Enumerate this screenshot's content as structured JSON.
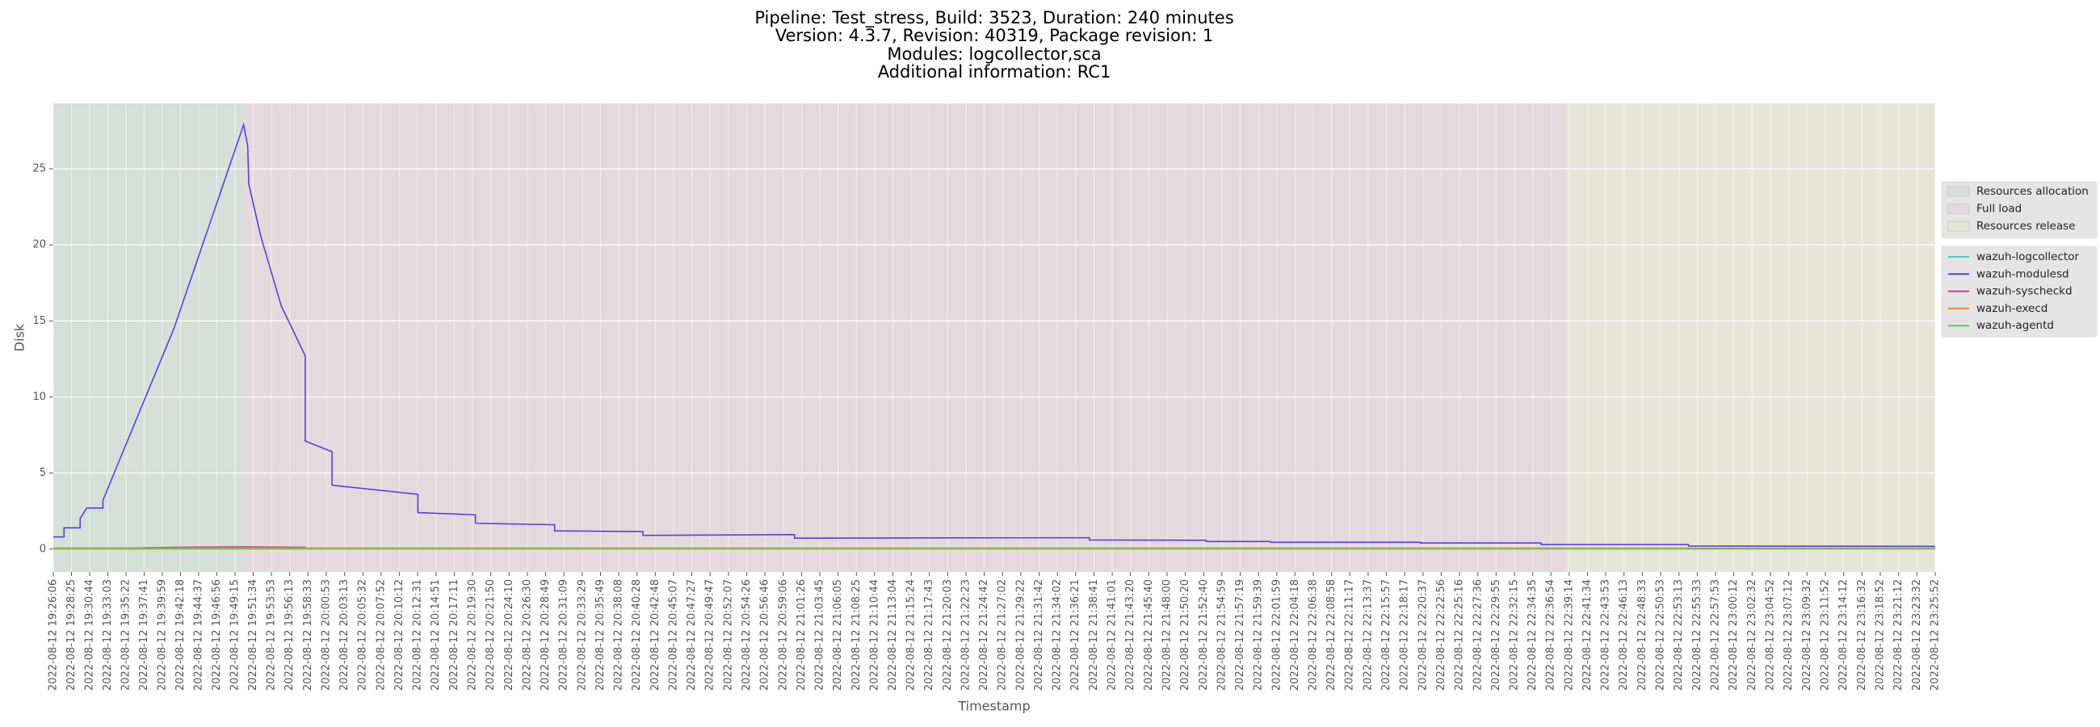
{
  "chart_data": {
    "type": "line",
    "title": [
      "Pipeline: Test_stress, Build: 3523, Duration: 240 minutes",
      "Version: 4.3.7, Revision: 40319, Package revision: 1",
      "Modules: logcollector,sca",
      "Additional information: RC1"
    ],
    "xlabel": "Timestamp",
    "ylabel": "Disk",
    "ylim": [
      -1.5,
      29.3
    ],
    "yticks": [
      0,
      5,
      10,
      15,
      20,
      25
    ],
    "grid": true,
    "xlim": [
      "2022-08-12 19:26:06",
      "2022-08-12 23:25:52"
    ],
    "xticks": [
      "2022-08-12 19:26:06",
      "2022-08-12 19:28:25",
      "2022-08-12 19:30:44",
      "2022-08-12 19:33:03",
      "2022-08-12 19:35:22",
      "2022-08-12 19:37:41",
      "2022-08-12 19:39:59",
      "2022-08-12 19:42:18",
      "2022-08-12 19:44:37",
      "2022-08-12 19:46:56",
      "2022-08-12 19:49:15",
      "2022-08-12 19:51:34",
      "2022-08-12 19:53:53",
      "2022-08-12 19:56:13",
      "2022-08-12 19:58:33",
      "2022-08-12 20:00:53",
      "2022-08-12 20:03:13",
      "2022-08-12 20:05:32",
      "2022-08-12 20:07:52",
      "2022-08-12 20:10:12",
      "2022-08-12 20:12:31",
      "2022-08-12 20:14:51",
      "2022-08-12 20:17:11",
      "2022-08-12 20:19:30",
      "2022-08-12 20:21:50",
      "2022-08-12 20:24:10",
      "2022-08-12 20:26:30",
      "2022-08-12 20:28:49",
      "2022-08-12 20:31:09",
      "2022-08-12 20:33:29",
      "2022-08-12 20:35:49",
      "2022-08-12 20:38:08",
      "2022-08-12 20:40:28",
      "2022-08-12 20:42:48",
      "2022-08-12 20:45:07",
      "2022-08-12 20:47:27",
      "2022-08-12 20:49:47",
      "2022-08-12 20:52:07",
      "2022-08-12 20:54:26",
      "2022-08-12 20:56:46",
      "2022-08-12 20:59:06",
      "2022-08-12 21:01:26",
      "2022-08-12 21:03:45",
      "2022-08-12 21:06:05",
      "2022-08-12 21:08:25",
      "2022-08-12 21:10:44",
      "2022-08-12 21:13:04",
      "2022-08-12 21:15:24",
      "2022-08-12 21:17:43",
      "2022-08-12 21:20:03",
      "2022-08-12 21:22:23",
      "2022-08-12 21:24:42",
      "2022-08-12 21:27:02",
      "2022-08-12 21:29:22",
      "2022-08-12 21:31:42",
      "2022-08-12 21:34:02",
      "2022-08-12 21:36:21",
      "2022-08-12 21:38:41",
      "2022-08-12 21:41:01",
      "2022-08-12 21:43:20",
      "2022-08-12 21:45:40",
      "2022-08-12 21:48:00",
      "2022-08-12 21:50:20",
      "2022-08-12 21:52:40",
      "2022-08-12 21:54:59",
      "2022-08-12 21:57:19",
      "2022-08-12 21:59:39",
      "2022-08-12 22:01:59",
      "2022-08-12 22:04:18",
      "2022-08-12 22:06:38",
      "2022-08-12 22:08:58",
      "2022-08-12 22:11:17",
      "2022-08-12 22:13:37",
      "2022-08-12 22:15:57",
      "2022-08-12 22:18:17",
      "2022-08-12 22:20:37",
      "2022-08-12 22:22:56",
      "2022-08-12 22:25:16",
      "2022-08-12 22:27:36",
      "2022-08-12 22:29:55",
      "2022-08-12 22:32:15",
      "2022-08-12 22:34:35",
      "2022-08-12 22:36:54",
      "2022-08-12 22:39:14",
      "2022-08-12 22:41:34",
      "2022-08-12 22:43:53",
      "2022-08-12 22:46:13",
      "2022-08-12 22:48:33",
      "2022-08-12 22:50:53",
      "2022-08-12 22:53:13",
      "2022-08-12 22:55:33",
      "2022-08-12 22:57:53",
      "2022-08-12 23:00:12",
      "2022-08-12 23:02:32",
      "2022-08-12 23:04:52",
      "2022-08-12 23:07:12",
      "2022-08-12 23:09:32",
      "2022-08-12 23:11:52",
      "2022-08-12 23:14:12",
      "2022-08-12 23:16:32",
      "2022-08-12 23:18:52",
      "2022-08-12 23:21:12",
      "2022-08-12 23:23:32",
      "2022-08-12 23:25:52"
    ],
    "spans": [
      {
        "name": "Resources allocation",
        "start": "2022-08-12 19:26:06",
        "end": "2022-08-12 19:50:30",
        "color": "#d6e0d9"
      },
      {
        "name": "Full load",
        "start": "2022-08-12 19:50:30",
        "end": "2022-08-12 22:38:43",
        "color": "#e6d9dd"
      },
      {
        "name": "Resources release",
        "start": "2022-08-12 22:38:43",
        "end": "2022-08-12 23:25:52",
        "color": "#e5e6d8"
      }
    ],
    "x": [
      "2022-08-12 19:26:06",
      "2022-08-12 19:27:28",
      "2022-08-12 19:27:28",
      "2022-08-12 19:29:31",
      "2022-08-12 19:29:31",
      "2022-08-12 19:30:22",
      "2022-08-12 19:32:25",
      "2022-08-12 19:32:25",
      "2022-08-12 19:41:28",
      "2022-08-12 19:50:21",
      "2022-08-12 19:50:52",
      "2022-08-12 19:51:00",
      "2022-08-12 19:52:34",
      "2022-08-12 19:55:08",
      "2022-08-12 19:58:12",
      "2022-08-12 19:58:12",
      "2022-08-12 20:01:37",
      "2022-08-12 20:01:37",
      "2022-08-12 20:12:33",
      "2022-08-12 20:12:33",
      "2022-08-12 20:19:53",
      "2022-08-12 20:19:53",
      "2022-08-12 20:29:58",
      "2022-08-12 20:29:58",
      "2022-08-12 20:41:14",
      "2022-08-12 20:41:14",
      "2022-08-12 21:00:32",
      "2022-08-12 21:00:32",
      "2022-08-12 21:38:06",
      "2022-08-12 21:38:06",
      "2022-08-12 21:52:58",
      "2022-08-12 21:52:58",
      "2022-08-12 22:01:09",
      "2022-08-12 22:01:09",
      "2022-08-12 22:20:17",
      "2022-08-12 22:20:17",
      "2022-08-12 22:35:39",
      "2022-08-12 22:35:39",
      "2022-08-12 22:54:26",
      "2022-08-12 22:54:26",
      "2022-08-12 23:25:52"
    ],
    "series": [
      {
        "name": "wazuh-logcollector",
        "color": "#4fc9c0",
        "values": [
          0.05,
          0.05,
          0.05,
          0.05,
          0.05,
          0.05,
          0.05,
          0.05,
          0.05,
          0.05,
          0.05,
          0.05,
          0.05,
          0.05,
          0.05,
          0.05,
          0.05,
          0.05,
          0.05,
          0.05,
          0.05,
          0.05,
          0.05,
          0.05,
          0.05,
          0.05,
          0.05,
          0.05,
          0.05,
          0.05,
          0.05,
          0.05,
          0.05,
          0.05,
          0.05,
          0.05,
          0.05,
          0.05,
          0.05,
          0.05,
          0.05
        ]
      },
      {
        "name": "wazuh-modulesd",
        "color": "#5b3fe0",
        "values": [
          0.8,
          0.8,
          1.4,
          1.4,
          2.0,
          2.7,
          2.7,
          3.2,
          14.5,
          27.9,
          26.5,
          24.0,
          20.5,
          16.0,
          12.7,
          7.1,
          6.4,
          4.2,
          3.6,
          2.4,
          2.25,
          1.7,
          1.6,
          1.2,
          1.15,
          0.9,
          0.95,
          0.72,
          0.75,
          0.6,
          0.58,
          0.5,
          0.5,
          0.45,
          0.45,
          0.4,
          0.4,
          0.3,
          0.3,
          0.2,
          0.18
        ]
      },
      {
        "name": "wazuh-syscheckd",
        "color": "#c9398a",
        "values": [
          0.05,
          0.05,
          0.05,
          0.05,
          0.05,
          0.05,
          0.05,
          0.05,
          0.12,
          0.15,
          0.15,
          0.15,
          0.14,
          0.13,
          0.12,
          0.05,
          0.05,
          0.05,
          0.05,
          0.05,
          0.05,
          0.05,
          0.05,
          0.05,
          0.05,
          0.05,
          0.05,
          0.05,
          0.05,
          0.05,
          0.05,
          0.05,
          0.05,
          0.05,
          0.05,
          0.05,
          0.05,
          0.05,
          0.05,
          0.05,
          0.05
        ]
      },
      {
        "name": "wazuh-execd",
        "color": "#e08a2e",
        "values": [
          0.01,
          0.01,
          0.01,
          0.01,
          0.01,
          0.01,
          0.01,
          0.01,
          0.01,
          0.01,
          0.01,
          0.01,
          0.01,
          0.01,
          0.01,
          0.01,
          0.01,
          0.01,
          0.01,
          0.01,
          0.01,
          0.01,
          0.01,
          0.01,
          0.01,
          0.01,
          0.01,
          0.01,
          0.01,
          0.01,
          0.01,
          0.01,
          0.01,
          0.01,
          0.01,
          0.01,
          0.01,
          0.01,
          0.01,
          0.01,
          0.01
        ]
      },
      {
        "name": "wazuh-agentd",
        "color": "#5ad05a",
        "values": [
          0.07,
          0.07,
          0.07,
          0.07,
          0.07,
          0.07,
          0.07,
          0.07,
          0.07,
          0.07,
          0.07,
          0.07,
          0.07,
          0.07,
          0.07,
          0.07,
          0.07,
          0.07,
          0.07,
          0.07,
          0.07,
          0.07,
          0.07,
          0.07,
          0.07,
          0.07,
          0.07,
          0.07,
          0.07,
          0.07,
          0.07,
          0.07,
          0.07,
          0.07,
          0.07,
          0.07,
          0.07,
          0.07,
          0.07,
          0.07,
          0.07
        ]
      }
    ]
  }
}
